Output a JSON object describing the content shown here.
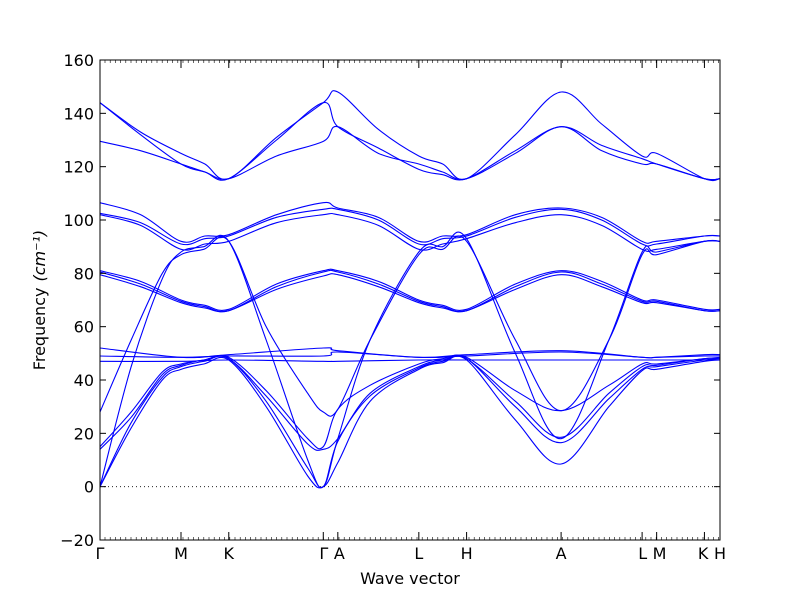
{
  "chart_data": {
    "type": "line",
    "xlabel": "Wave vector",
    "ylabel": "Frequency",
    "ylabel_unit": "(cm⁻¹)",
    "ylim": [
      -20,
      160
    ],
    "y_ticks": [
      "−20",
      "0",
      "20",
      "40",
      "60",
      "80",
      "100",
      "120",
      "140",
      "160"
    ],
    "y_tick_values": [
      -20,
      0,
      20,
      40,
      60,
      80,
      100,
      120,
      140,
      160
    ],
    "xlim": [
      0,
      5.97
    ],
    "x_ticks": [
      {
        "label": "Γ",
        "x": 0.0
      },
      {
        "label": "M",
        "x": 0.78
      },
      {
        "label": "K",
        "x": 1.24
      },
      {
        "label": "Γ",
        "x": 2.15
      },
      {
        "label": "A",
        "x": 2.29
      },
      {
        "label": "L",
        "x": 3.07
      },
      {
        "label": "H",
        "x": 3.53
      },
      {
        "label": "A",
        "x": 4.44
      },
      {
        "label": "L",
        "x": 5.22
      },
      {
        "label": "M",
        "x": 5.36
      },
      {
        "label": "K",
        "x": 5.82
      },
      {
        "label": "H",
        "x": 5.97
      }
    ],
    "zero_line": true,
    "line_color": "#0000ff",
    "series": [
      {
        "x": [
          0,
          0.3,
          0.6,
          0.78,
          1.0,
          1.24,
          1.6,
          2.0,
          2.15,
          2.29,
          2.6,
          3.07,
          3.3,
          3.53,
          4.0,
          4.44,
          4.9,
          5.22,
          5.36,
          5.82,
          5.97
        ],
        "y": [
          0,
          22,
          40,
          44,
          46,
          47.5,
          30,
          4,
          0,
          9,
          32,
          44,
          46.5,
          47.5,
          25,
          8.5,
          30,
          43.5,
          44,
          47,
          47.5
        ]
      },
      {
        "x": [
          0,
          0.3,
          0.6,
          0.78,
          1.0,
          1.24,
          1.6,
          2.0,
          2.15,
          2.29,
          2.6,
          3.07,
          3.3,
          3.53,
          4.0,
          4.44,
          4.9,
          5.22,
          5.36,
          5.82,
          5.97
        ],
        "y": [
          0,
          24,
          41,
          45,
          47,
          48,
          32,
          7,
          0,
          17,
          34,
          44.5,
          47,
          48,
          30,
          16.5,
          33,
          44,
          45,
          47.5,
          48
        ]
      },
      {
        "x": [
          0,
          0.3,
          0.6,
          0.78,
          1.0,
          1.24,
          1.6,
          2.0,
          2.15,
          2.29,
          2.6,
          3.07,
          3.3,
          3.53,
          4.0,
          4.44,
          4.9,
          5.22,
          5.36,
          5.82,
          5.97
        ],
        "y": [
          14,
          26,
          42,
          45.5,
          47.5,
          48,
          34,
          16,
          14,
          18,
          35,
          45,
          47.5,
          48,
          32,
          18.5,
          35,
          45,
          45.5,
          48,
          48
        ]
      },
      {
        "x": [
          0,
          0.3,
          0.6,
          0.78,
          1.0,
          1.24,
          1.6,
          2.0,
          2.15,
          2.29,
          2.6,
          3.07,
          3.3,
          3.53,
          4.0,
          4.44,
          4.9,
          5.22,
          5.36,
          5.82,
          5.97
        ],
        "y": [
          15,
          28,
          43,
          46,
          47.5,
          48.5,
          36,
          18,
          15,
          29,
          38,
          46,
          48,
          48.5,
          36,
          28.5,
          38,
          46,
          46,
          48,
          48.5
        ]
      },
      {
        "x": [
          0,
          0.78,
          1.24,
          2.15,
          2.29,
          3.07,
          3.53,
          4.44,
          5.22,
          5.36,
          5.82,
          5.97
        ],
        "y": [
          47,
          47,
          47.5,
          47,
          47,
          47.5,
          47.5,
          47.5,
          47.5,
          47.5,
          47.5,
          47.5
        ]
      },
      {
        "x": [
          0,
          0.78,
          1.24,
          2.15,
          2.29,
          3.07,
          3.53,
          4.44,
          5.22,
          5.36,
          5.82,
          5.97
        ],
        "y": [
          49,
          48.5,
          49,
          49,
          50.5,
          48.5,
          49,
          50.5,
          48.5,
          48.5,
          49,
          49
        ]
      },
      {
        "x": [
          0,
          0.78,
          1.24,
          2.15,
          2.29,
          3.07,
          3.53,
          4.44,
          5.22,
          5.36,
          5.82,
          5.97
        ],
        "y": [
          52,
          48.5,
          49.5,
          52,
          51,
          48.5,
          49.5,
          51,
          48.5,
          48.5,
          49.5,
          49.5
        ]
      },
      {
        "x": [
          0,
          0.3,
          0.6,
          0.78,
          1.0,
          1.24,
          1.6,
          2.0,
          2.15,
          2.29,
          2.6,
          3.07,
          3.3,
          3.53,
          4.0,
          4.44,
          4.9,
          5.22,
          5.36,
          5.82,
          5.97
        ],
        "y": [
          28,
          55,
          80,
          87,
          89,
          92,
          60,
          35,
          28,
          29,
          55,
          87,
          89,
          92,
          55,
          28.5,
          55,
          87,
          87,
          92,
          92
        ]
      },
      {
        "x": [
          0,
          0.3,
          0.6,
          0.78,
          1.0,
          1.24,
          1.6,
          2.0,
          2.15,
          2.29,
          2.6,
          3.07,
          3.3,
          3.53,
          4.0,
          4.44,
          4.9,
          5.22,
          5.36,
          5.82,
          5.97
        ],
        "y": [
          0,
          45,
          78,
          88,
          90,
          92,
          55,
          10,
          0,
          18,
          55,
          88,
          90,
          93,
          50,
          18,
          55,
          88,
          88,
          92,
          92
        ]
      },
      {
        "x": [
          0,
          0.39,
          0.78,
          1.01,
          1.24,
          1.7,
          2.15,
          2.29,
          2.68,
          3.07,
          3.3,
          3.53,
          4.0,
          4.44,
          4.83,
          5.22,
          5.36,
          5.82,
          5.97
        ],
        "y": [
          79.5,
          75,
          69,
          67,
          66,
          74,
          79,
          79.5,
          75,
          69,
          67,
          66,
          74,
          79.5,
          75,
          69,
          69,
          66,
          66
        ]
      },
      {
        "x": [
          0,
          0.39,
          0.78,
          1.01,
          1.24,
          1.7,
          2.15,
          2.29,
          2.68,
          3.07,
          3.3,
          3.53,
          4.0,
          4.44,
          4.83,
          5.22,
          5.36,
          5.82,
          5.97
        ],
        "y": [
          80.5,
          76,
          69.5,
          67.5,
          66,
          75,
          80.5,
          80.5,
          76,
          69.5,
          67.5,
          66,
          75,
          80.5,
          76,
          69.5,
          69.5,
          66,
          66
        ]
      },
      {
        "x": [
          0,
          0.39,
          0.78,
          1.01,
          1.24,
          1.7,
          2.15,
          2.29,
          2.68,
          3.07,
          3.3,
          3.53,
          4.0,
          4.44,
          4.83,
          5.22,
          5.36,
          5.82,
          5.97
        ],
        "y": [
          81,
          77,
          70,
          68,
          66.5,
          76,
          81,
          81,
          77,
          70,
          68,
          66.5,
          76,
          81,
          77,
          70,
          70,
          66.5,
          66.5
        ]
      },
      {
        "x": [
          0,
          0.39,
          0.78,
          1.01,
          1.24,
          1.7,
          2.15,
          2.29,
          2.68,
          3.07,
          3.3,
          3.53,
          4.0,
          4.44,
          4.83,
          5.22,
          5.36,
          5.82,
          5.97
        ],
        "y": [
          102,
          98,
          89,
          91,
          92,
          99,
          102,
          102,
          98,
          89,
          91,
          93,
          99,
          102,
          98,
          89,
          89,
          92,
          92
        ]
      },
      {
        "x": [
          0,
          0.39,
          0.78,
          1.01,
          1.24,
          1.7,
          2.15,
          2.29,
          2.68,
          3.07,
          3.3,
          3.53,
          4.0,
          4.44,
          4.83,
          5.22,
          5.36,
          5.82,
          5.97
        ],
        "y": [
          102.5,
          99,
          91,
          93,
          94,
          101,
          104,
          104,
          100,
          91,
          93,
          94,
          101,
          104,
          100,
          91,
          91,
          94,
          94
        ]
      },
      {
        "x": [
          0,
          0.39,
          0.78,
          1.01,
          1.24,
          1.7,
          2.15,
          2.29,
          2.68,
          3.07,
          3.3,
          3.53,
          4.0,
          4.44,
          4.83,
          5.22,
          5.36,
          5.82,
          5.97
        ],
        "y": [
          106.5,
          102,
          92,
          94,
          94.5,
          102,
          106.5,
          104.5,
          101,
          92,
          94,
          94.5,
          102,
          104.5,
          101,
          92,
          92,
          94,
          94
        ]
      },
      {
        "x": [
          0,
          0.39,
          0.78,
          1.01,
          1.24,
          1.7,
          2.15,
          2.29,
          2.68,
          3.07,
          3.3,
          3.53,
          4.0,
          4.44,
          4.83,
          5.22,
          5.36,
          5.82,
          5.97
        ],
        "y": [
          129.5,
          126,
          121,
          118,
          115.5,
          124,
          129.5,
          135,
          125,
          121,
          118,
          115.5,
          125,
          135,
          126,
          121,
          121,
          115.5,
          115.5
        ]
      },
      {
        "x": [
          0,
          0.39,
          0.78,
          1.01,
          1.24,
          1.7,
          2.15,
          2.29,
          2.68,
          3.07,
          3.3,
          3.53,
          4.0,
          4.44,
          4.83,
          5.22,
          5.36,
          5.82,
          5.97
        ],
        "y": [
          144,
          132,
          121,
          118,
          115.5,
          130,
          144,
          135,
          127,
          119,
          117,
          115.5,
          126,
          135,
          128,
          123,
          121,
          115.5,
          115.5
        ]
      },
      {
        "x": [
          0,
          0.39,
          0.78,
          1.01,
          1.24,
          1.7,
          2.15,
          2.29,
          2.68,
          3.07,
          3.3,
          3.53,
          4.0,
          4.44,
          4.83,
          5.22,
          5.36,
          5.82,
          5.97
        ],
        "y": [
          144,
          133,
          125,
          121,
          115.5,
          131,
          144,
          148,
          134,
          124,
          121,
          115.5,
          132,
          148,
          136,
          124,
          125,
          115.5,
          115.5
        ]
      }
    ]
  }
}
